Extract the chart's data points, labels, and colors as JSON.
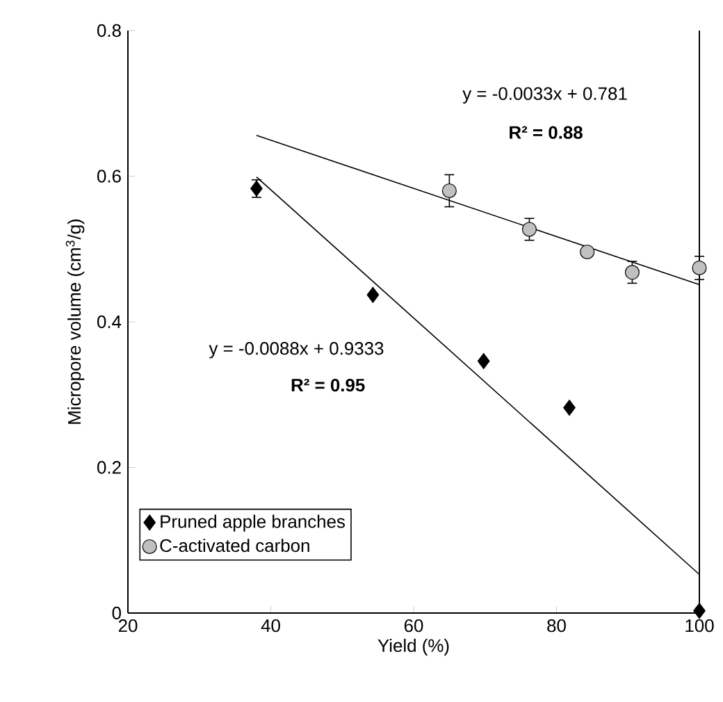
{
  "chart_data": {
    "type": "scatter",
    "xlabel": "Yield (%)",
    "ylabel": "Micropore volume (cm$^{3}$/g)",
    "xlim": [
      20,
      100
    ],
    "ylim": [
      0,
      0.8
    ],
    "xticks": [
      20,
      40,
      60,
      80,
      100
    ],
    "yticks": [
      0,
      0.2,
      0.4,
      0.6,
      0.8
    ],
    "grid": false,
    "legend": "bottom left",
    "series": [
      {
        "name": "Pruned apple branches",
        "color": "#000000",
        "marker": "diamond",
        "x": [
          38,
          54.3,
          69.8,
          81.8,
          100
        ],
        "values": [
          0.583,
          0.437,
          0.346,
          0.282,
          0.003
        ],
        "errors": [
          0.012,
          null,
          null,
          null,
          null
        ]
      },
      {
        "name": "C-activated carbon",
        "color": "#c0c0c0",
        "marker": "circle",
        "x": [
          65,
          76.2,
          84.3,
          90.6,
          100
        ],
        "values": [
          0.58,
          0.527,
          0.496,
          0.468,
          0.474
        ],
        "errors": [
          0.022,
          0.015,
          null,
          0.015,
          0.016
        ]
      },
      {
        "type": "line",
        "color": "#000000",
        "marker": "none",
        "x": [
          38,
          100
        ],
        "values": [
          0.656,
          0.451
        ]
      },
      {
        "type": "line",
        "color": "#000000",
        "marker": "none",
        "x": [
          38,
          100
        ],
        "values": [
          0.599,
          0.053
        ]
      }
    ],
    "annotations": [
      "y = -0.0033x + 0.781",
      "R² = 0.88",
      "y = -0.0088x + 0.9333",
      "R² = 0.95"
    ]
  }
}
